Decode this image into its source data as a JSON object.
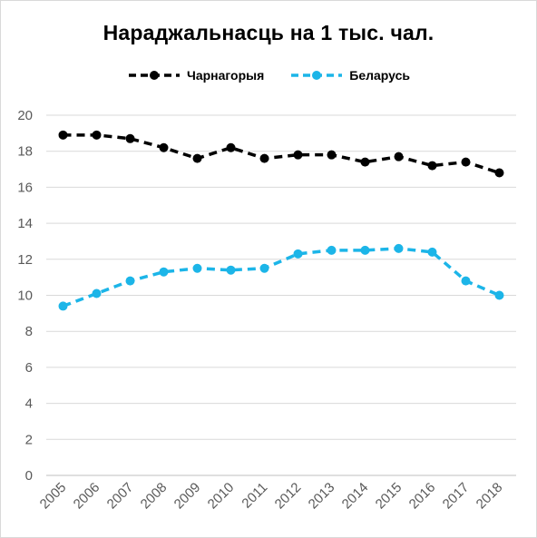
{
  "chart_data": {
    "type": "line",
    "title": "Нараджальнасць  на 1 тыс. чал.",
    "xlabel": "",
    "ylabel": "",
    "categories": [
      "2005",
      "2006",
      "2007",
      "2008",
      "2009",
      "2010",
      "2011",
      "2012",
      "2013",
      "2014",
      "2015",
      "2016",
      "2017",
      "2018"
    ],
    "ylim": [
      0,
      20
    ],
    "yticks": [
      "0",
      "2",
      "4",
      "6",
      "8",
      "10",
      "12",
      "14",
      "16",
      "18",
      "20"
    ],
    "grid": true,
    "legend_position": "top",
    "series": [
      {
        "name": "Чарнагорыя",
        "color": "#000000",
        "values": [
          18.9,
          18.9,
          18.7,
          18.2,
          17.6,
          18.2,
          17.6,
          17.8,
          17.8,
          17.4,
          17.7,
          17.2,
          17.4,
          16.8
        ]
      },
      {
        "name": "Беларусь",
        "color": "#1cb5e8",
        "values": [
          9.4,
          10.1,
          10.8,
          11.3,
          11.5,
          11.4,
          11.5,
          12.3,
          12.5,
          12.5,
          12.6,
          12.4,
          10.8,
          10.0
        ]
      }
    ]
  }
}
